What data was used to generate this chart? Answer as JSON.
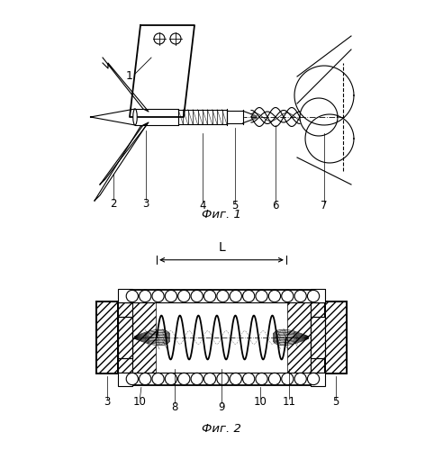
{
  "fig1_label": "Фиг. 1",
  "fig2_label": "Фиг. 2",
  "label_L": "L",
  "bg_color": "#ffffff",
  "lw": 0.8,
  "lw_thick": 1.3,
  "black": "#000000"
}
